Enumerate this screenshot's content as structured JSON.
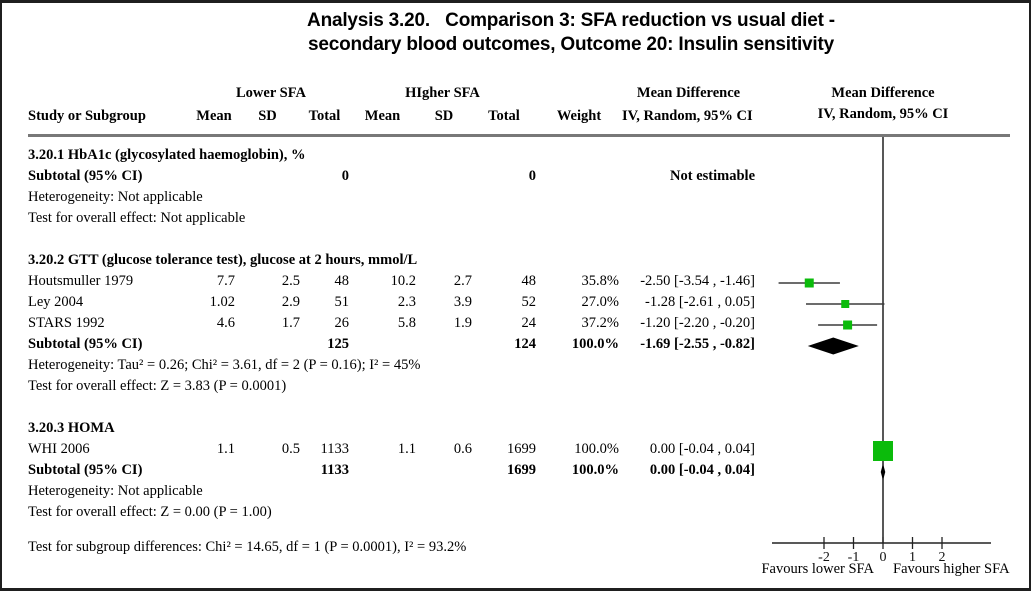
{
  "title": {
    "line1": "Analysis 3.20.   Comparison 3: SFA reduction vs usual diet -",
    "line2": "secondary blood outcomes, Outcome 20: Insulin sensitivity"
  },
  "header": {
    "study": "Study or Subgroup",
    "group1": "Lower SFA",
    "group2": "HIgher SFA",
    "mean": "Mean",
    "sd": "SD",
    "total": "Total",
    "weight": "Weight",
    "md1": "Mean Difference",
    "md2": "IV, Random, 95% CI"
  },
  "table": {
    "rows": [
      {
        "label": "3.20.1 HbA1c (glycosylated haemoglobin), %"
      },
      {
        "study": "Subtotal (95% CI)",
        "total1": "0",
        "total2": "0",
        "ci": "Not estimable"
      },
      {
        "label": "Heterogeneity: Not applicable"
      },
      {
        "label": "Test for overall effect: Not applicable"
      },
      {
        "label": ""
      },
      {
        "label": "3.20.2 GTT (glucose tolerance test), glucose at 2 hours, mmol/L"
      },
      {
        "study": "Houtsmuller 1979",
        "mean1": "7.7",
        "sd1": "2.5",
        "total1": "48",
        "mean2": "10.2",
        "sd2": "2.7",
        "total2": "48",
        "weight": "35.8%",
        "ci": "-2.50 [-3.54 , -1.46]"
      },
      {
        "study": "Ley 2004",
        "mean1": "1.02",
        "sd1": "2.9",
        "total1": "51",
        "mean2": "2.3",
        "sd2": "3.9",
        "total2": "52",
        "weight": "27.0%",
        "ci": "-1.28 [-2.61 , 0.05]"
      },
      {
        "study": "STARS 1992",
        "mean1": "4.6",
        "sd1": "1.7",
        "total1": "26",
        "mean2": "5.8",
        "sd2": "1.9",
        "total2": "24",
        "weight": "37.2%",
        "ci": "-1.20 [-2.20 , -0.20]"
      },
      {
        "study": "Subtotal (95% CI)",
        "total1": "125",
        "total2": "124",
        "weight": "100.0%",
        "ci": "-1.69 [-2.55 , -0.82]"
      },
      {
        "label": "Heterogeneity: Tau² = 0.26; Chi² = 3.61, df = 2 (P = 0.16); I² = 45%"
      },
      {
        "label": "Test for overall effect: Z = 3.83 (P = 0.0001)"
      },
      {
        "label": ""
      },
      {
        "label": "3.20.3 HOMA"
      },
      {
        "study": "WHI 2006",
        "mean1": "1.1",
        "sd1": "0.5",
        "total1": "1133",
        "mean2": "1.1",
        "sd2": "0.6",
        "total2": "1699",
        "weight": "100.0%",
        "ci": "0.00 [-0.04 , 0.04]"
      },
      {
        "study": "Subtotal (95% CI)",
        "total1": "1133",
        "total2": "1699",
        "weight": "100.0%",
        "ci": "0.00 [-0.04 , 0.04]"
      },
      {
        "label": "Heterogeneity: Not applicable"
      },
      {
        "label": "Test for overall effect: Z = 0.00 (P = 1.00)"
      }
    ]
  },
  "footer": {
    "subgroup_test": "Test for subgroup differences: Chi² = 14.65, df = 1 (P = 0.0001), I² = 93.2%"
  },
  "chart_data": {
    "type": "forest",
    "effect_measure": "Mean Difference, IV, Random, 95% CI",
    "axis": {
      "ticks": [
        -2,
        -1,
        0,
        1,
        2
      ],
      "zero_line": 0,
      "label_left": "Favours lower SFA",
      "label_right": "Favours higher SFA"
    },
    "colors": {
      "marker": "#0bbb0b",
      "ci_line": "#3c3c3c",
      "diamond": "#000000"
    },
    "subgroups": [
      {
        "name": "3.20.1 HbA1c (glycosylated haemoglobin), %",
        "studies": [],
        "subtotal": null,
        "note": "Not estimable"
      },
      {
        "name": "3.20.2 GTT (glucose tolerance test), glucose at 2 hours, mmol/L",
        "studies": [
          {
            "study": "Houtsmuller 1979",
            "est": -2.5,
            "lo": -3.54,
            "hi": -1.46,
            "weight": 35.8,
            "row": 6,
            "size": 9
          },
          {
            "study": "Ley 2004",
            "est": -1.28,
            "lo": -2.61,
            "hi": 0.05,
            "weight": 27.0,
            "row": 7,
            "size": 8
          },
          {
            "study": "STARS 1992",
            "est": -1.2,
            "lo": -2.2,
            "hi": -0.2,
            "weight": 37.2,
            "row": 8,
            "size": 9
          }
        ],
        "subtotal": {
          "est": -1.69,
          "lo": -2.55,
          "hi": -0.82,
          "row": 9
        },
        "heterogeneity": "Tau² = 0.26; Chi² = 3.61, df = 2 (P = 0.16); I² = 45%",
        "overall_effect": "Z = 3.83 (P = 0.0001)"
      },
      {
        "name": "3.20.3 HOMA",
        "studies": [
          {
            "study": "WHI 2006",
            "est": 0.0,
            "lo": -0.04,
            "hi": 0.04,
            "weight": 100.0,
            "row": 14,
            "size": 20
          }
        ],
        "subtotal": {
          "est": 0.0,
          "lo": -0.04,
          "hi": 0.04,
          "row": 15
        },
        "heterogeneity": "Not applicable",
        "overall_effect": "Z = 0.00 (P = 1.00)"
      }
    ]
  }
}
